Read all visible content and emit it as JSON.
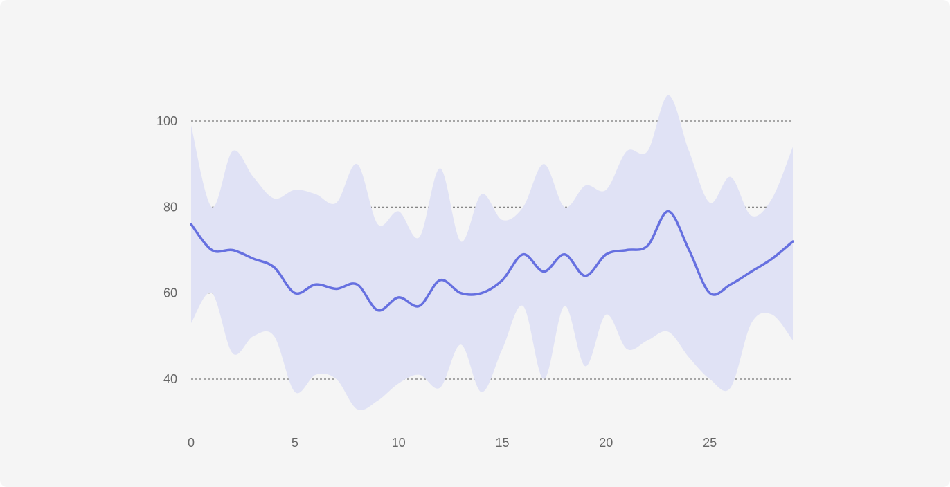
{
  "chart_data": {
    "type": "line",
    "title": "",
    "xlabel": "",
    "ylabel": "",
    "x": [
      0,
      1,
      2,
      3,
      4,
      5,
      6,
      7,
      8,
      9,
      10,
      11,
      12,
      13,
      14,
      15,
      16,
      17,
      18,
      19,
      20,
      21,
      22,
      23,
      24,
      25,
      26,
      27,
      28,
      29
    ],
    "series": [
      {
        "values": [
          76,
          70,
          70,
          68,
          66,
          60,
          62,
          61,
          62,
          56,
          59,
          57,
          63,
          60,
          60,
          63,
          69,
          65,
          69,
          64,
          69,
          70,
          71,
          79,
          70,
          60,
          62,
          65,
          68,
          72
        ],
        "upper": [
          99,
          80,
          93,
          87,
          82,
          84,
          83,
          81,
          90,
          76,
          79,
          73,
          89,
          72,
          83,
          77,
          80,
          90,
          80,
          85,
          84,
          93,
          93,
          106,
          93,
          81,
          87,
          78,
          82,
          94
        ],
        "lower": [
          53,
          60,
          46,
          50,
          50,
          37,
          41,
          40,
          33,
          35,
          39,
          41,
          38,
          48,
          37,
          47,
          57,
          40,
          57,
          43,
          55,
          47,
          49,
          51,
          45,
          40,
          38,
          53,
          55,
          49
        ]
      }
    ],
    "xlim": [
      0,
      29
    ],
    "ylim": [
      30,
      106
    ],
    "x_ticks": [
      "0",
      "5",
      "10",
      "15",
      "20",
      "25"
    ],
    "y_ticks": [
      "40",
      "60",
      "80",
      "100"
    ],
    "grid": "horizontal dotted",
    "colors": {
      "line": "#6670e0",
      "band": "#e0e2f5",
      "grid": "#777777",
      "tick_text": "#666666",
      "background": "#f5f5f5"
    }
  }
}
